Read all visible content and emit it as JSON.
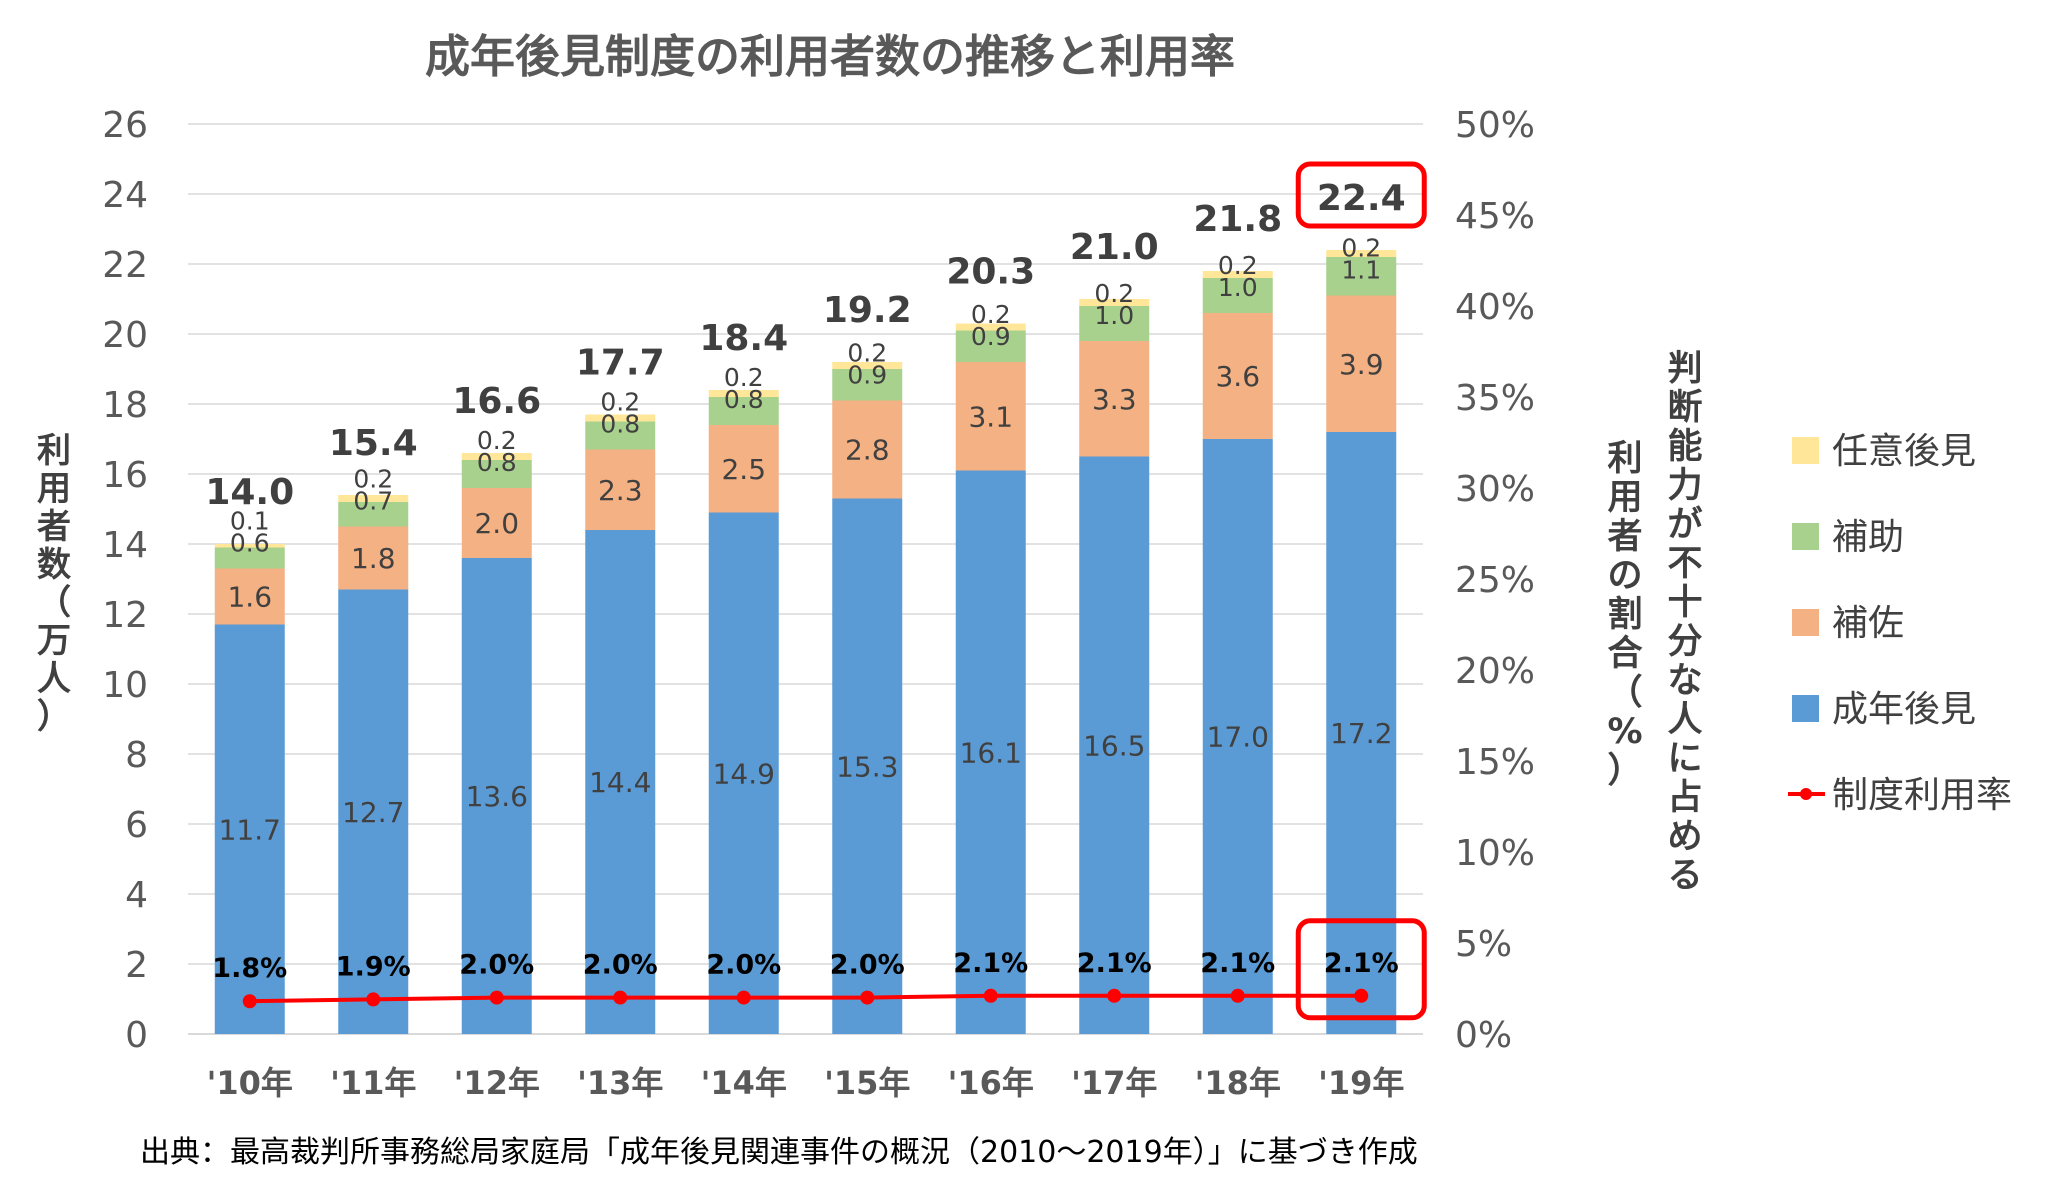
{
  "chart_data": {
    "type": "bar",
    "stacked": true,
    "title": "成年後見制度の利用者数の推移と利用率",
    "categories": [
      "'10年",
      "'11年",
      "'12年",
      "'13年",
      "'14年",
      "'15年",
      "'16年",
      "'17年",
      "'18年",
      "'19年"
    ],
    "series": [
      {
        "name": "成年後見",
        "color": "#5B9BD5",
        "values": [
          11.7,
          12.7,
          13.6,
          14.4,
          14.9,
          15.3,
          16.1,
          16.5,
          17.0,
          17.2
        ]
      },
      {
        "name": "補佐",
        "color": "#F4B183",
        "values": [
          1.6,
          1.8,
          2.0,
          2.3,
          2.5,
          2.8,
          3.1,
          3.3,
          3.6,
          3.9
        ]
      },
      {
        "name": "補助",
        "color": "#A9D18E",
        "values": [
          0.6,
          0.7,
          0.8,
          0.8,
          0.8,
          0.9,
          0.9,
          1.0,
          1.0,
          1.1
        ]
      },
      {
        "name": "任意後見",
        "color": "#FFE699",
        "values": [
          0.1,
          0.2,
          0.2,
          0.2,
          0.2,
          0.2,
          0.2,
          0.2,
          0.2,
          0.2
        ]
      }
    ],
    "segment_labels": [
      [
        "11.7",
        "12.7",
        "13.6",
        "14.4",
        "14.9",
        "15.3",
        "16.1",
        "16.5",
        "17.0",
        "17.2"
      ],
      [
        "1.6",
        "1.8",
        "2.0",
        "2.3",
        "2.5",
        "2.8",
        "3.1",
        "3.3",
        "3.6",
        "3.9"
      ],
      [
        "0.6",
        "0.7",
        "0.8",
        "0.8",
        "0.8",
        "0.9",
        "0.9",
        "1.0",
        "1.0",
        "1.1"
      ],
      [
        "0.1",
        "0.2",
        "0.2",
        "0.2",
        "0.2",
        "0.2",
        "0.2",
        "0.2",
        "0.2",
        "0.2"
      ]
    ],
    "totals": [
      14.0,
      15.4,
      16.6,
      17.7,
      18.4,
      19.2,
      20.3,
      21.0,
      21.8,
      22.4
    ],
    "total_labels": [
      "14.0",
      "15.4",
      "16.6",
      "17.7",
      "18.4",
      "19.2",
      "20.3",
      "21.0",
      "21.8",
      "22.4"
    ],
    "line_series": {
      "name": "制度利用率",
      "color": "#FF0000",
      "values": [
        1.8,
        1.9,
        2.0,
        2.0,
        2.0,
        2.0,
        2.1,
        2.1,
        2.1,
        2.1
      ],
      "labels": [
        "1.8%",
        "1.9%",
        "2.0%",
        "2.0%",
        "2.0%",
        "2.0%",
        "2.1%",
        "2.1%",
        "2.1%",
        "2.1%"
      ]
    },
    "y_left": {
      "label": "利用者数（万人）",
      "ylim": [
        0,
        26
      ],
      "ticks": [
        "0",
        "2",
        "4",
        "6",
        "8",
        "10",
        "12",
        "14",
        "16",
        "18",
        "20",
        "22",
        "24",
        "26"
      ]
    },
    "y_right": {
      "label_line1": "判断能力が不十分な人に占める",
      "label_line2": "利用者の割合（%）",
      "ylim": [
        0,
        50
      ],
      "ticks": [
        "0%",
        "5%",
        "10%",
        "15%",
        "20%",
        "25%",
        "30%",
        "35%",
        "40%",
        "45%",
        "50%"
      ]
    },
    "grid": true,
    "legend_position": "right",
    "legend": [
      {
        "label": "任意後見",
        "color": "#FFE699",
        "kind": "box"
      },
      {
        "label": "補助",
        "color": "#A9D18E",
        "kind": "box"
      },
      {
        "label": "補佐",
        "color": "#F4B183",
        "kind": "box"
      },
      {
        "label": "成年後見",
        "color": "#5B9BD5",
        "kind": "box"
      },
      {
        "label": "制度利用率",
        "color": "#FF0000",
        "kind": "line"
      }
    ],
    "highlight_category": "'19年",
    "highlight_color": "#FF0000",
    "source": "出典：最高裁判所事務総局家庭局「成年後見関連事件の概況（2010〜2019年）」に基づき作成"
  }
}
